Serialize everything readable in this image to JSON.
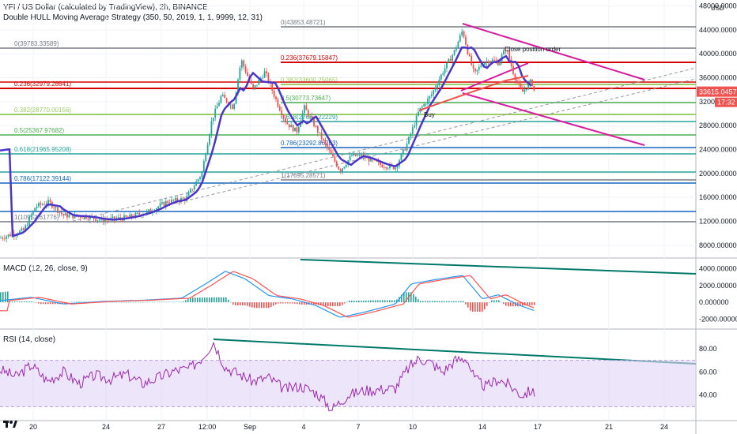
{
  "header": {
    "symbol_line": "YFI / US Dollar (calculated by TradingView), 2h, BINANCE",
    "indicator_line": "Double HULL Moving Average Strategy (350, 50, 2019, 1, 1, 9999, 12, 31)"
  },
  "price_axis": {
    "currency": "USD",
    "ticks": [
      "48000.000000",
      "44000.000000",
      "40000.000000",
      "36000.000000",
      "32000.000000",
      "28000.000000",
      "24000.000000",
      "20000.000000",
      "16000.000000",
      "12000.000000",
      "8000.000000"
    ],
    "last_price_label": "33615.04579",
    "countdown_label": "17:32"
  },
  "time_axis": {
    "ticks": [
      "20",
      "24",
      "27",
      "12:00",
      "Sep",
      "4",
      "7",
      "10",
      "14",
      "17",
      "21",
      "24"
    ]
  },
  "fib_labels": {
    "left": [
      "0(39783.33589)",
      "0.236(32979.28641)",
      "0.382(28770.00156)",
      "0.5(25367.97682)",
      "0.618(21965.95208)",
      "0.786(17122.39144)",
      "1(10952.61776)"
    ],
    "right": [
      "0(43853.48721)",
      "0.236(37679.15847)",
      "0.382(33600.25065)",
      "0.5(30773.73647)",
      "0.618(27687.22229)",
      "0.786(23292.86263)",
      "1(17695.28571)"
    ]
  },
  "annotations": {
    "close_label": "Close position order",
    "buy_label": "Buy"
  },
  "macd": {
    "title": "MACD (12, 26, close, 9)",
    "ticks": [
      "4000.000000",
      "2000.000000",
      "0.000000",
      "-2000.000000"
    ]
  },
  "rsi": {
    "title": "RSI (14, close)",
    "ticks": [
      "80.00",
      "60.00",
      "40.00"
    ]
  },
  "colors": {
    "up": "#26a69a",
    "down": "#ef5350",
    "hull": "#4a36c9",
    "trend": "#d81b9e",
    "teal_line": "#00796b",
    "fib_red": "#d50000",
    "fib_green": "#4caf50",
    "fib_lime": "#9ccc65",
    "fib_blue": "#1565c0",
    "fib_gray": "#787b86",
    "macd_line": "#2196f3",
    "signal_line": "#ff5252",
    "rsi_line": "#9c27b0",
    "rsi_band": "#e1d4f5"
  },
  "chart_data": {
    "type": "candlestick",
    "title": "YFI / US Dollar (calculated by TradingView), 2h, BINANCE",
    "ylim": [
      6000,
      49000
    ],
    "x_ticks": [
      "20",
      "24",
      "27",
      "12:00",
      "Sep",
      "4",
      "7",
      "10",
      "14",
      "17",
      "21",
      "24"
    ],
    "close_path": [
      [
        0,
        9200
      ],
      [
        30,
        10500
      ],
      [
        45,
        14500
      ],
      [
        62,
        15200
      ],
      [
        80,
        13000
      ],
      [
        110,
        12800
      ],
      [
        130,
        12200
      ],
      [
        160,
        12600
      ],
      [
        190,
        13700
      ],
      [
        210,
        15200
      ],
      [
        235,
        15800
      ],
      [
        255,
        20000
      ],
      [
        268,
        29000
      ],
      [
        280,
        33000
      ],
      [
        295,
        31000
      ],
      [
        305,
        39000
      ],
      [
        320,
        34000
      ],
      [
        335,
        37000
      ],
      [
        350,
        32000
      ],
      [
        362,
        28500
      ],
      [
        375,
        27000
      ],
      [
        385,
        31000
      ],
      [
        400,
        27500
      ],
      [
        415,
        24000
      ],
      [
        430,
        20500
      ],
      [
        445,
        23000
      ],
      [
        460,
        22800
      ],
      [
        480,
        21500
      ],
      [
        500,
        21000
      ],
      [
        515,
        25000
      ],
      [
        530,
        30500
      ],
      [
        545,
        33000
      ],
      [
        560,
        37000
      ],
      [
        575,
        40500
      ],
      [
        585,
        44000
      ],
      [
        592,
        40000
      ],
      [
        600,
        36500
      ],
      [
        610,
        38500
      ],
      [
        620,
        39000
      ],
      [
        630,
        38500
      ],
      [
        640,
        41000
      ],
      [
        650,
        36500
      ],
      [
        660,
        33500
      ],
      [
        672,
        35500
      ],
      [
        676,
        33615
      ]
    ],
    "last_price": 33615.04579,
    "fib_left": [
      {
        "level": 0,
        "price": 39783.33589
      },
      {
        "level": 0.236,
        "price": 32979.28641
      },
      {
        "level": 0.382,
        "price": 28770.00156
      },
      {
        "level": 0.5,
        "price": 25367.97682
      },
      {
        "level": 0.618,
        "price": 21965.95208
      },
      {
        "level": 0.786,
        "price": 17122.39144
      },
      {
        "level": 1,
        "price": 10952.61776
      }
    ],
    "fib_right": [
      {
        "level": 0,
        "price": 43853.48721
      },
      {
        "level": 0.236,
        "price": 37679.15847
      },
      {
        "level": 0.382,
        "price": 33600.25065
      },
      {
        "level": 0.5,
        "price": 30773.73647
      },
      {
        "level": 0.618,
        "price": 27687.22229
      },
      {
        "level": 0.786,
        "price": 23292.86263
      },
      {
        "level": 1,
        "price": 17695.28571
      }
    ],
    "macd_ylim": [
      -3000,
      5000
    ],
    "macd_path": [
      [
        0,
        200
      ],
      [
        40,
        600
      ],
      [
        80,
        -200
      ],
      [
        130,
        100
      ],
      [
        180,
        250
      ],
      [
        230,
        500
      ],
      [
        260,
        2200
      ],
      [
        285,
        3700
      ],
      [
        310,
        2800
      ],
      [
        340,
        800
      ],
      [
        370,
        400
      ],
      [
        400,
        -400
      ],
      [
        430,
        -1800
      ],
      [
        460,
        -1200
      ],
      [
        500,
        -200
      ],
      [
        520,
        2200
      ],
      [
        550,
        2700
      ],
      [
        585,
        3200
      ],
      [
        610,
        400
      ],
      [
        630,
        900
      ],
      [
        655,
        -300
      ],
      [
        676,
        -1000
      ]
    ],
    "rsi_ylim": [
      20,
      95
    ],
    "rsi_band": [
      30,
      70
    ],
    "rsi_path": [
      [
        0,
        62
      ],
      [
        20,
        56
      ],
      [
        40,
        66
      ],
      [
        60,
        52
      ],
      [
        80,
        60
      ],
      [
        100,
        50
      ],
      [
        120,
        57
      ],
      [
        140,
        54
      ],
      [
        160,
        58
      ],
      [
        180,
        50
      ],
      [
        200,
        55
      ],
      [
        220,
        61
      ],
      [
        240,
        63
      ],
      [
        255,
        72
      ],
      [
        270,
        86
      ],
      [
        285,
        64
      ],
      [
        300,
        59
      ],
      [
        320,
        52
      ],
      [
        340,
        55
      ],
      [
        360,
        45
      ],
      [
        380,
        48
      ],
      [
        400,
        42
      ],
      [
        420,
        28
      ],
      [
        440,
        40
      ],
      [
        460,
        44
      ],
      [
        480,
        45
      ],
      [
        500,
        46
      ],
      [
        515,
        62
      ],
      [
        530,
        72
      ],
      [
        545,
        68
      ],
      [
        560,
        60
      ],
      [
        575,
        70
      ],
      [
        590,
        72
      ],
      [
        600,
        54
      ],
      [
        615,
        47
      ],
      [
        630,
        54
      ],
      [
        645,
        48
      ],
      [
        660,
        40
      ],
      [
        672,
        44
      ],
      [
        676,
        40
      ]
    ]
  }
}
